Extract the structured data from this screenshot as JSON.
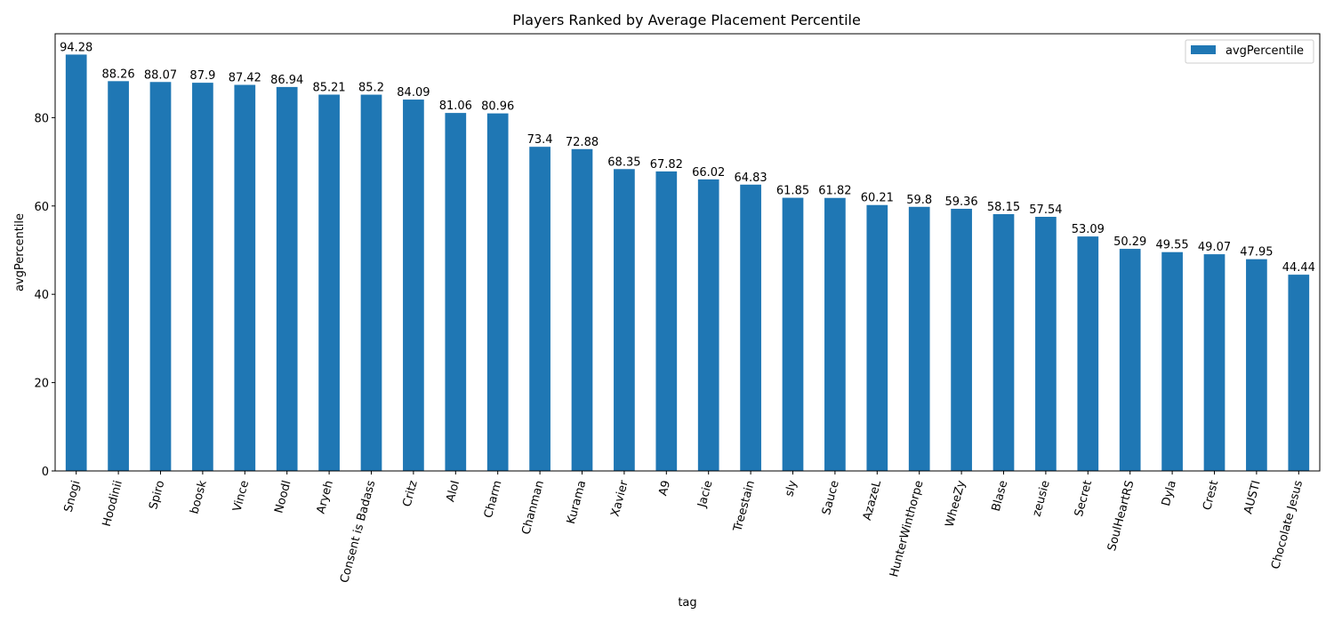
{
  "chart_data": {
    "type": "bar",
    "title": "Players Ranked by Average Placement Percentile",
    "xlabel": "tag",
    "ylabel": "avgPercentile",
    "ylim": [
      0,
      98.99
    ],
    "yticks": [
      0,
      20,
      40,
      60,
      80
    ],
    "grid": false,
    "legend_position": "top-right",
    "bar_color": "#1f77b4",
    "categories": [
      "Snogi",
      "Hoodinii",
      "Spiro",
      "boosk",
      "Vince",
      "Noodl",
      "Aryeh",
      "Consent is Badass",
      "Critz",
      "AloI",
      "Charm",
      "Chanman",
      "Kurama",
      "Xavier",
      "A9",
      "Jacie",
      "Treestain",
      "sly",
      "Sauce",
      "AzazeL",
      "HunterWinthorpe",
      "WheeZy",
      "Blase",
      "zeusie",
      "Secret",
      "SoulHeartRS",
      "Dyla",
      "Crest",
      "AUSTI",
      "Chocolate Jesus"
    ],
    "series": [
      {
        "name": "avgPercentile",
        "values": [
          94.28,
          88.26,
          88.07,
          87.9,
          87.42,
          86.94,
          85.21,
          85.2,
          84.09,
          81.06,
          80.96,
          73.4,
          72.88,
          68.35,
          67.82,
          66.02,
          64.83,
          61.85,
          61.82,
          60.21,
          59.8,
          59.36,
          58.15,
          57.54,
          53.09,
          50.29,
          49.55,
          49.07,
          47.95,
          44.44
        ]
      }
    ]
  }
}
